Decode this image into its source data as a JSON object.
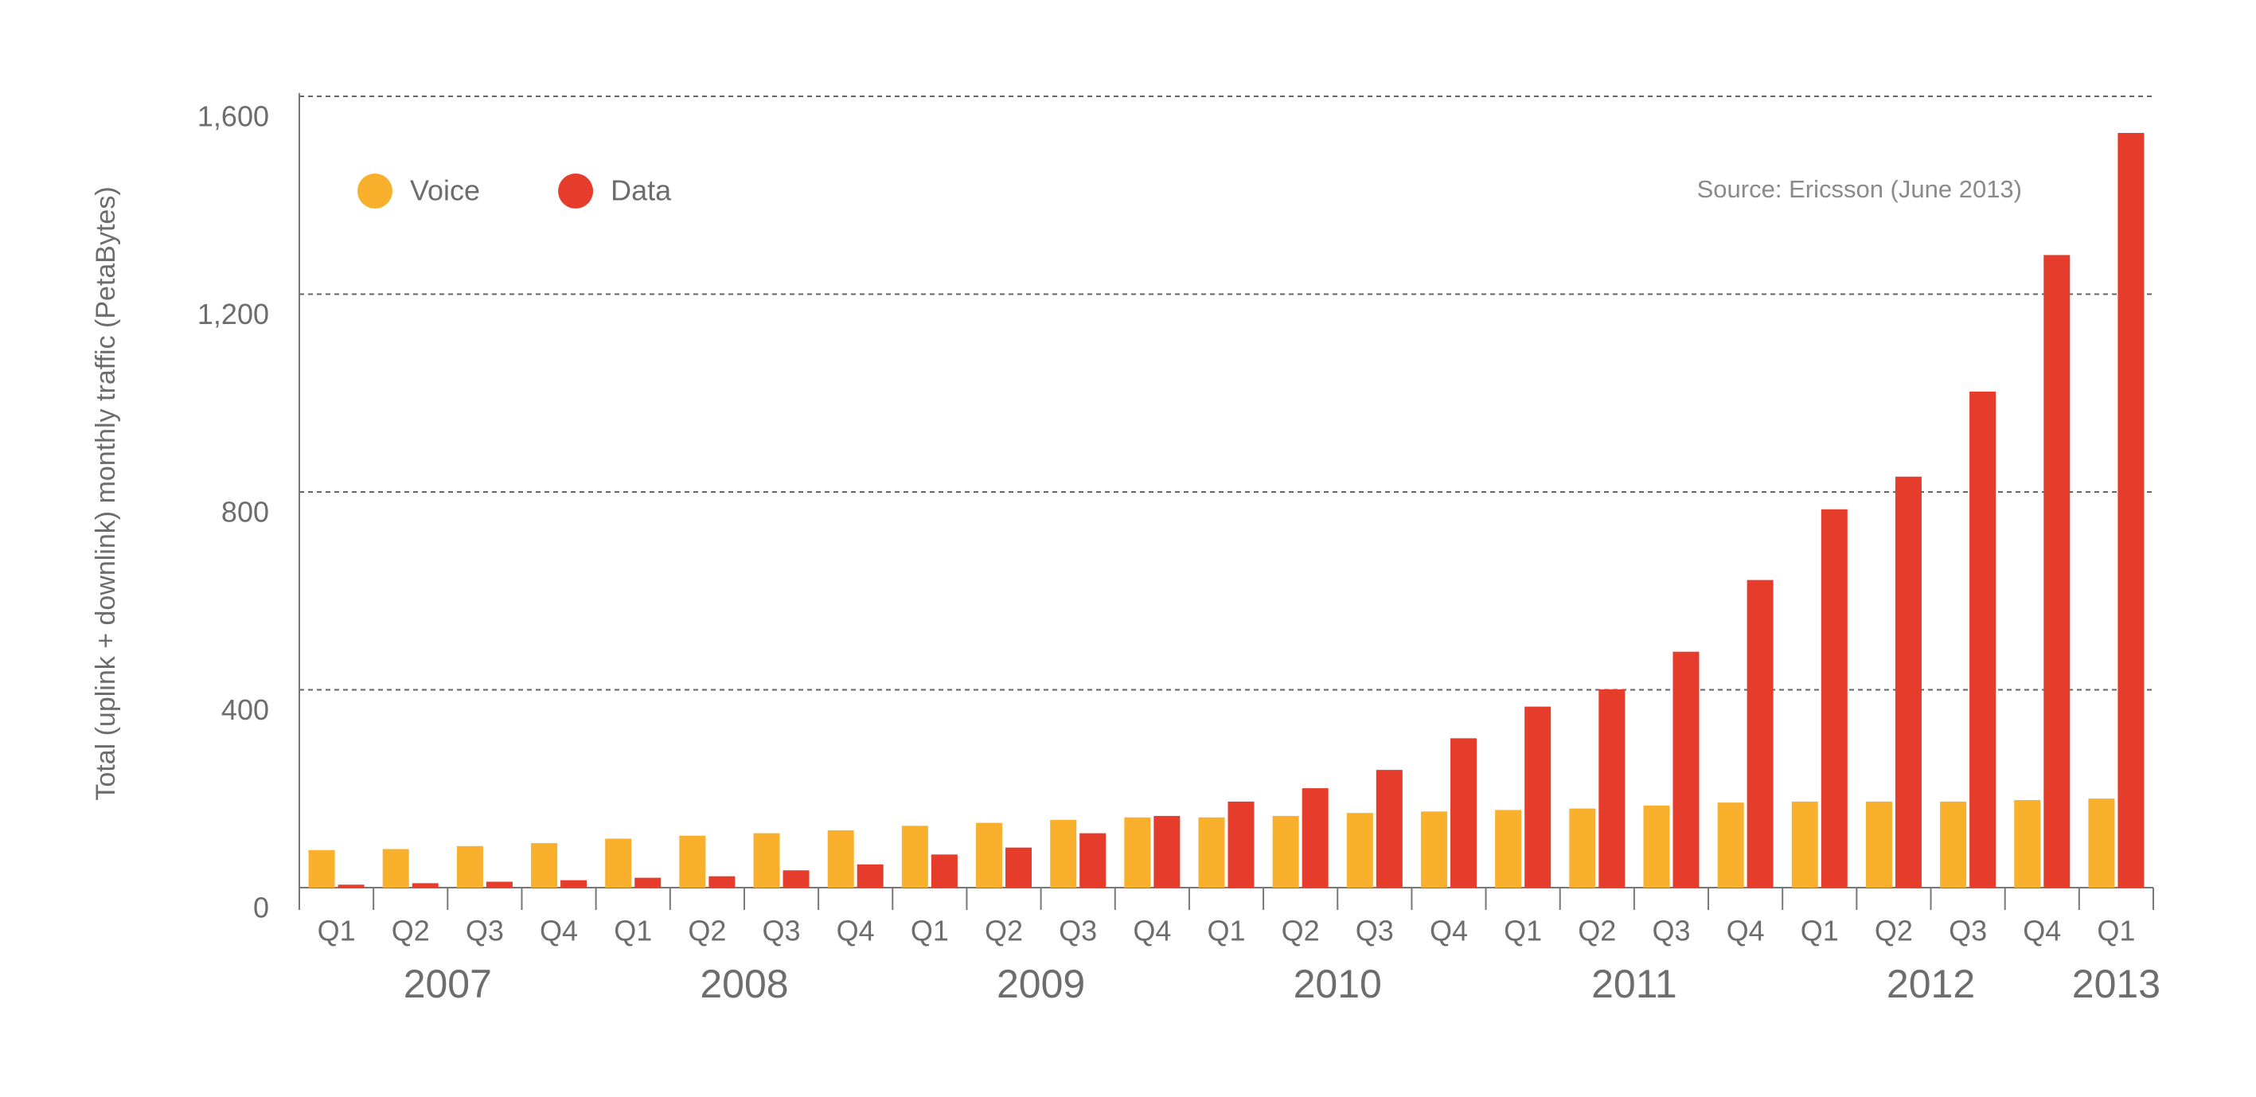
{
  "chart_data": {
    "type": "bar",
    "y_label": "Total (uplink + downlink) monthly traffic (PetaBytes)",
    "annotation": "Source: Ericsson (June 2013)",
    "groups": [
      {
        "name": "2007",
        "categories": [
          "Q1",
          "Q2",
          "Q3",
          "Q4"
        ]
      },
      {
        "name": "2008",
        "categories": [
          "Q1",
          "Q2",
          "Q3",
          "Q4"
        ]
      },
      {
        "name": "2009",
        "categories": [
          "Q1",
          "Q2",
          "Q3",
          "Q4"
        ]
      },
      {
        "name": "2010",
        "categories": [
          "Q1",
          "Q2",
          "Q3",
          "Q4"
        ]
      },
      {
        "name": "2011",
        "categories": [
          "Q1",
          "Q2",
          "Q3",
          "Q4"
        ]
      },
      {
        "name": "2012",
        "categories": [
          "Q1",
          "Q2",
          "Q3",
          "Q4"
        ]
      },
      {
        "name": "2013",
        "categories": [
          "Q1"
        ]
      }
    ],
    "series": [
      {
        "name": "Voice",
        "color": "#f9b02c",
        "values": [
          76,
          78,
          84,
          90,
          99,
          105,
          110,
          116,
          125,
          131,
          137,
          142,
          142,
          145,
          151,
          154,
          157,
          160,
          166,
          172,
          174,
          174,
          174,
          177,
          180
        ]
      },
      {
        "name": "Data",
        "color": "#e63c2c",
        "values": [
          6,
          9,
          12,
          15,
          20,
          23,
          35,
          47,
          67,
          81,
          110,
          145,
          174,
          201,
          238,
          302,
          366,
          401,
          477,
          622,
          765,
          831,
          1003,
          1279,
          1526
        ]
      }
    ],
    "ylim": [
      0,
      1600
    ],
    "yticks": [
      0,
      400,
      800,
      {
        "value": 1200,
        "label": "1,200"
      },
      {
        "value": 1600,
        "label": "1,600"
      }
    ],
    "grid": true,
    "legend": "top-left"
  }
}
